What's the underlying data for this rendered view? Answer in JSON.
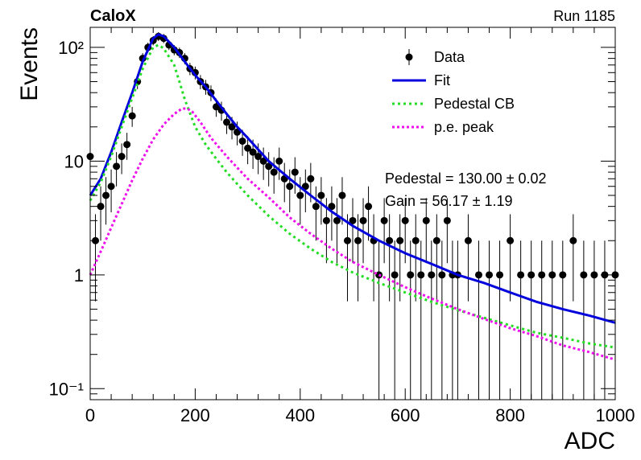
{
  "header": {
    "left": "CaloX",
    "right": "Run 1185"
  },
  "stats": {
    "pedestal": "Pedestal = 130.00 ± 0.02",
    "gain": "Gain = 56.17 ± 1.19"
  },
  "colors": {
    "data": "#000000",
    "fit": "#0000dd",
    "pedestal": "#22dd22",
    "pe": "#ee11ee",
    "frame": "#000000"
  },
  "chart_data": {
    "type": "scatter",
    "xlabel": "ADC",
    "ylabel": "Events",
    "xlim": [
      0,
      1000
    ],
    "ylim": [
      0.08,
      150
    ],
    "yscale": "log",
    "x_ticks": [
      0,
      200,
      400,
      600,
      800,
      1000
    ],
    "x_tick_labels": [
      "0",
      "200",
      "400",
      "600",
      "800",
      "1000"
    ],
    "y_ticks": [
      0.1,
      1,
      10,
      100
    ],
    "y_tick_labels": [
      "10⁻¹",
      "1",
      "10",
      "10²"
    ],
    "legend_position": "top-right",
    "series": [
      {
        "name": "Data",
        "kind": "points",
        "x": [
          0,
          10,
          20,
          30,
          40,
          50,
          60,
          70,
          80,
          90,
          100,
          110,
          120,
          130,
          140,
          150,
          160,
          170,
          180,
          190,
          200,
          210,
          220,
          230,
          240,
          250,
          260,
          270,
          280,
          290,
          300,
          310,
          320,
          330,
          340,
          350,
          360,
          370,
          380,
          390,
          400,
          410,
          420,
          430,
          440,
          450,
          460,
          470,
          480,
          490,
          500,
          510,
          520,
          530,
          540,
          550,
          560,
          570,
          580,
          590,
          600,
          610,
          620,
          630,
          640,
          650,
          660,
          670,
          680,
          690,
          700,
          720,
          740,
          760,
          780,
          800,
          820,
          840,
          860,
          880,
          900,
          920,
          940,
          960,
          980,
          1000
        ],
        "y": [
          11,
          2,
          4,
          5,
          6,
          9,
          11,
          14,
          25,
          50,
          80,
          100,
          115,
          125,
          120,
          105,
          95,
          90,
          80,
          65,
          60,
          50,
          45,
          40,
          30,
          28,
          22,
          20,
          18,
          15,
          13,
          12,
          11,
          10,
          9,
          8,
          10,
          7,
          6,
          8,
          5,
          6,
          7,
          4,
          5,
          3,
          4,
          3,
          5,
          2,
          3,
          2,
          3,
          4,
          2,
          1,
          3,
          2,
          1,
          2,
          3,
          1,
          2,
          1,
          3,
          1,
          2,
          1,
          3,
          1,
          1,
          2,
          1,
          1,
          1,
          2,
          1,
          1,
          1,
          1,
          1,
          2,
          1,
          1,
          1,
          1
        ]
      },
      {
        "name": "Fit",
        "kind": "line",
        "x": [
          0,
          20,
          40,
          60,
          80,
          100,
          120,
          130,
          140,
          160,
          180,
          200,
          220,
          240,
          260,
          280,
          300,
          340,
          380,
          420,
          460,
          500,
          550,
          600,
          650,
          700,
          750,
          800,
          850,
          900,
          950,
          1000
        ],
        "y": [
          5,
          7,
          12,
          22,
          40,
          75,
          120,
          130,
          125,
          100,
          75,
          57,
          45,
          34,
          26,
          20,
          16,
          10,
          7,
          5,
          3.6,
          2.7,
          2,
          1.55,
          1.25,
          1,
          0.85,
          0.7,
          0.58,
          0.5,
          0.44,
          0.38
        ]
      },
      {
        "name": "Pedestal CB",
        "kind": "dotted",
        "x": [
          0,
          20,
          40,
          60,
          80,
          100,
          120,
          130,
          140,
          160,
          170,
          180,
          200,
          220,
          240,
          260,
          280,
          300,
          340,
          380,
          420,
          460,
          500,
          550,
          600,
          650,
          700,
          750,
          800,
          850,
          900,
          950,
          1000
        ],
        "y": [
          4.5,
          6.5,
          11,
          20,
          36,
          65,
          100,
          105,
          98,
          70,
          50,
          35,
          20,
          14,
          10.5,
          8,
          6.3,
          5,
          3.3,
          2.3,
          1.7,
          1.3,
          1.05,
          0.85,
          0.7,
          0.58,
          0.49,
          0.42,
          0.36,
          0.31,
          0.28,
          0.25,
          0.23
        ]
      },
      {
        "name": "p.e. peak",
        "kind": "dotted",
        "x": [
          0,
          20,
          40,
          60,
          80,
          100,
          120,
          140,
          160,
          175,
          185,
          195,
          210,
          230,
          260,
          300,
          340,
          380,
          420,
          460,
          500,
          550,
          600,
          650,
          700,
          750,
          800,
          850,
          900,
          950,
          1000
        ],
        "y": [
          1,
          1.6,
          2.6,
          4.2,
          6.8,
          10.5,
          15.5,
          21,
          26,
          29,
          29,
          27,
          22,
          16,
          11,
          7,
          4.8,
          3.2,
          2.3,
          1.7,
          1.3,
          1.0,
          0.78,
          0.62,
          0.5,
          0.41,
          0.34,
          0.29,
          0.24,
          0.21,
          0.18
        ]
      }
    ]
  }
}
